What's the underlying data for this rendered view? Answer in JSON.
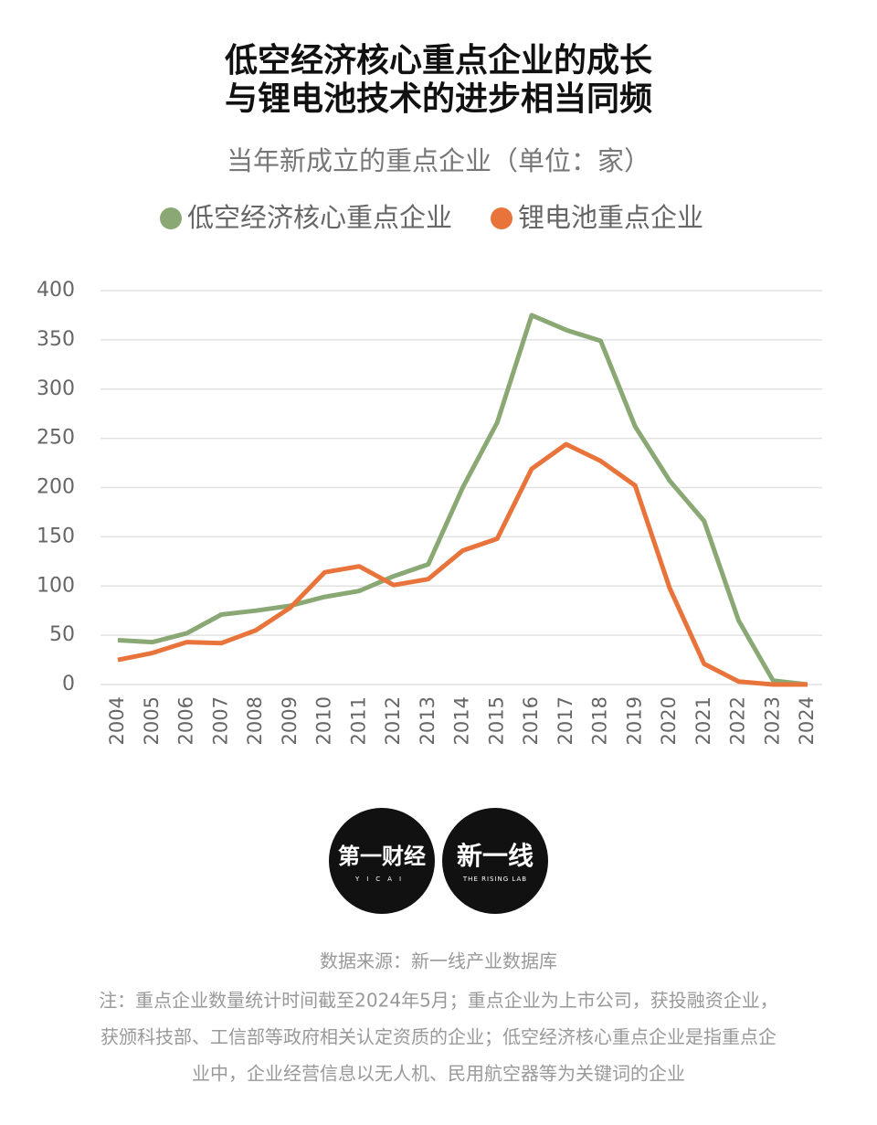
{
  "chart_data": {
    "type": "line",
    "title": [
      "低空经济核心重点企业的成长",
      "与锂电池技术的进步相当同频"
    ],
    "subtitle": "当年新成立的重点企业（单位：家）",
    "categories": [
      "2004",
      "2005",
      "2006",
      "2007",
      "2008",
      "2009",
      "2010",
      "2011",
      "2012",
      "2013",
      "2014",
      "2015",
      "2016",
      "2017",
      "2018",
      "2019",
      "2020",
      "2021",
      "2022",
      "2023",
      "2024"
    ],
    "series": [
      {
        "name": "低空经济核心重点企业",
        "color": "#8aa873",
        "values": [
          45,
          43,
          52,
          71,
          75,
          80,
          89,
          95,
          110,
          122,
          200,
          266,
          375,
          360,
          349,
          262,
          207,
          166,
          65,
          4,
          0
        ]
      },
      {
        "name": "锂电池重点企业",
        "color": "#e8743b",
        "values": [
          25,
          32,
          43,
          42,
          55,
          78,
          114,
          120,
          101,
          107,
          136,
          148,
          219,
          244,
          227,
          202,
          98,
          21,
          3,
          0,
          0
        ]
      }
    ],
    "ylim": [
      0,
      400
    ],
    "yticks": [
      0,
      50,
      100,
      150,
      200,
      250,
      300,
      350,
      400
    ],
    "grid": true,
    "logos": [
      {
        "main": "第一财经",
        "sub": "YICAI"
      },
      {
        "main": "新一线",
        "sub": "THE RISING LAB"
      }
    ],
    "source": "数据来源：新一线产业数据库",
    "notes": [
      "注：重点企业数量统计时间截至2024年5月；重点企业为上市公司，获投融资企业，",
      "获颁科技部、工信部等政府相关认定资质的企业；低空经济核心重点企业是指重点企",
      "业中，企业经营信息以无人机、民用航空器等为关键词的企业"
    ]
  }
}
